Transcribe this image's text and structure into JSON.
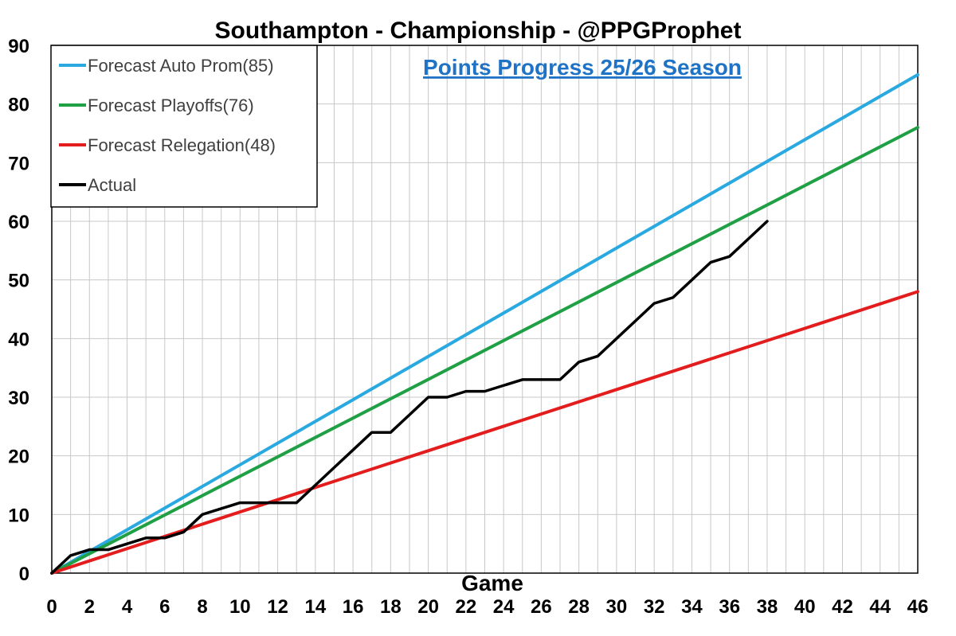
{
  "chart_data": {
    "type": "line",
    "title": "Southampton - Championship - @PPGProphet",
    "subtitle": "Points Progress 25/26 Season",
    "xlabel": "Game",
    "ylabel": "",
    "xlim": [
      0,
      46
    ],
    "ylim": [
      0,
      90
    ],
    "x_ticks": [
      0,
      2,
      4,
      6,
      8,
      10,
      12,
      14,
      16,
      18,
      20,
      22,
      24,
      26,
      28,
      30,
      32,
      34,
      36,
      38,
      40,
      42,
      44,
      46
    ],
    "y_ticks": [
      0,
      10,
      20,
      30,
      40,
      50,
      60,
      70,
      80,
      90
    ],
    "grid": true,
    "legend_position": "top-left",
    "series": [
      {
        "name": "Forecast Auto Prom(85)",
        "color": "#29a9e0",
        "x": [
          0,
          46
        ],
        "y": [
          0,
          85
        ]
      },
      {
        "name": "Forecast Playoffs(76)",
        "color": "#1fa045",
        "x": [
          0,
          46
        ],
        "y": [
          0,
          76
        ]
      },
      {
        "name": "Forecast Relegation(48)",
        "color": "#e31d1d",
        "x": [
          0,
          46
        ],
        "y": [
          0,
          48
        ]
      },
      {
        "name": "Actual",
        "color": "#000000",
        "x": [
          0,
          1,
          2,
          3,
          4,
          5,
          6,
          7,
          8,
          9,
          10,
          11,
          12,
          13,
          14,
          15,
          16,
          17,
          18,
          19,
          20,
          21,
          22,
          23,
          24,
          25,
          26,
          27,
          28,
          29,
          30,
          31,
          32,
          33,
          34,
          35,
          36,
          37,
          38
        ],
        "y": [
          0,
          3,
          4,
          4,
          5,
          6,
          6,
          7,
          10,
          11,
          12,
          12,
          12,
          12,
          15,
          18,
          21,
          24,
          24,
          27,
          30,
          30,
          31,
          31,
          32,
          33,
          33,
          33,
          36,
          37,
          40,
          43,
          46,
          47,
          50,
          53,
          54,
          57,
          60
        ]
      }
    ]
  }
}
